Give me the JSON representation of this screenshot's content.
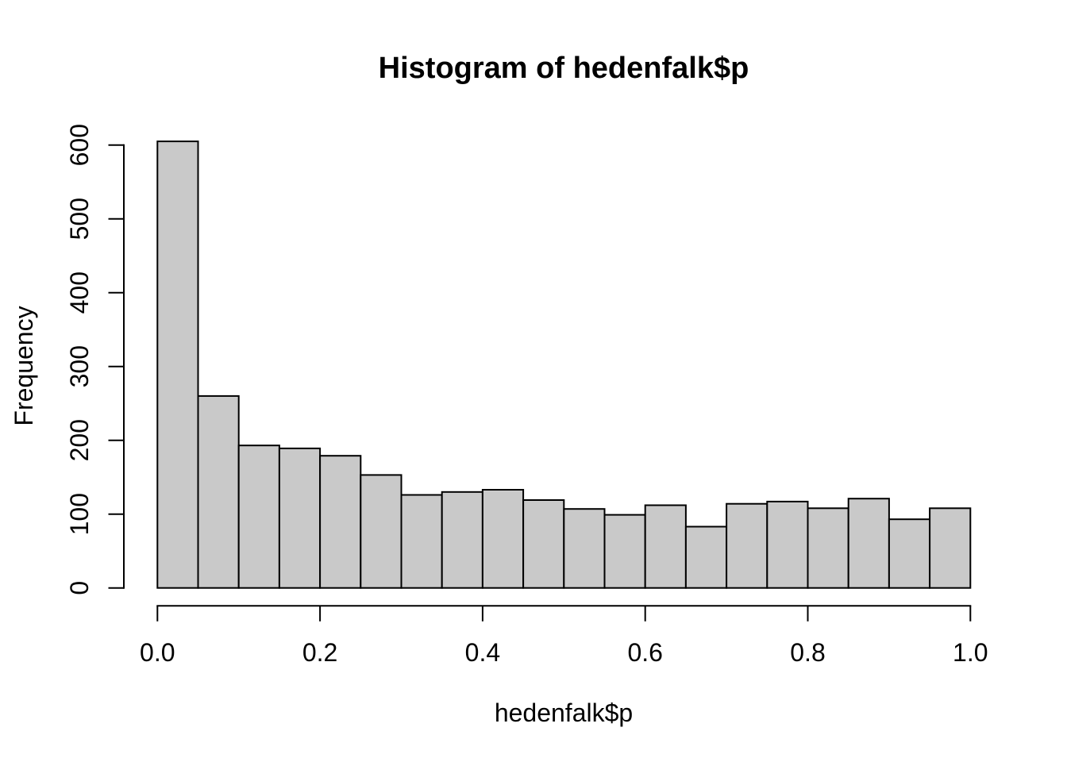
{
  "figure": {
    "background": "#FFFFFF",
    "text_color": "#000000"
  },
  "chart_data": {
    "type": "bar",
    "subtype": "histogram",
    "title": "Histogram of hedenfalk$p",
    "xlabel": "hedenfalk$p",
    "ylabel": "Frequency",
    "bin_start": 0.0,
    "bin_width": 0.05,
    "categories": [
      "0.00-0.05",
      "0.05-0.10",
      "0.10-0.15",
      "0.15-0.20",
      "0.20-0.25",
      "0.25-0.30",
      "0.30-0.35",
      "0.35-0.40",
      "0.40-0.45",
      "0.45-0.50",
      "0.50-0.55",
      "0.55-0.60",
      "0.60-0.65",
      "0.65-0.70",
      "0.70-0.75",
      "0.75-0.80",
      "0.80-0.85",
      "0.85-0.90",
      "0.90-0.95",
      "0.95-1.00"
    ],
    "values": [
      605,
      260,
      193,
      189,
      179,
      153,
      126,
      130,
      133,
      119,
      107,
      99,
      112,
      83,
      114,
      117,
      108,
      121,
      93,
      108
    ],
    "xlim": [
      0.0,
      1.0
    ],
    "ylim": [
      0,
      600
    ],
    "x_ticks": {
      "values": [
        0.0,
        0.2,
        0.4,
        0.6,
        0.8,
        1.0
      ],
      "labels": [
        "0.0",
        "0.2",
        "0.4",
        "0.6",
        "0.8",
        "1.0"
      ]
    },
    "y_ticks": {
      "values": [
        0,
        100,
        200,
        300,
        400,
        500,
        600
      ],
      "labels": [
        "0",
        "100",
        "200",
        "300",
        "400",
        "500",
        "600"
      ]
    },
    "grid": false,
    "legend": null,
    "bar_fill": "#C9C9C9",
    "bar_stroke": "#000000",
    "axis_color": "#000000"
  }
}
